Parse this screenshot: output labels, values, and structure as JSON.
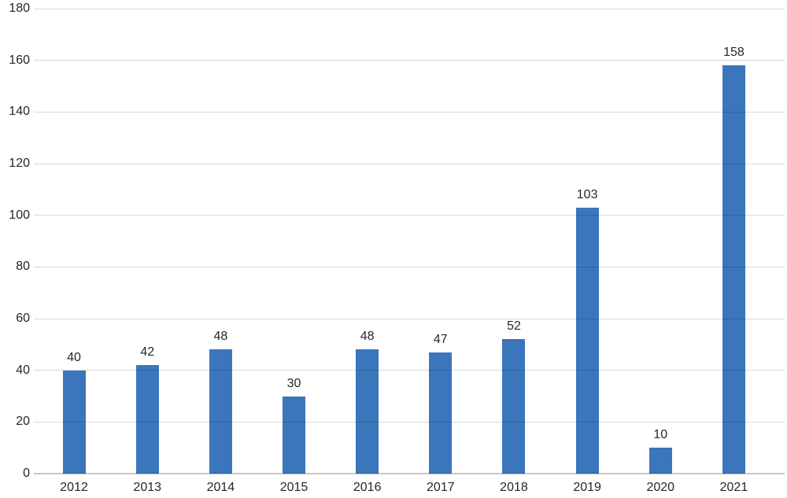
{
  "chart_data": {
    "type": "bar",
    "title": "",
    "xlabel": "",
    "ylabel": "",
    "categories": [
      "2012",
      "2013",
      "2014",
      "2015",
      "2016",
      "2017",
      "2018",
      "2019",
      "2020",
      "2021"
    ],
    "values": [
      40,
      42,
      48,
      30,
      48,
      47,
      52,
      103,
      10,
      158
    ],
    "data_labels": [
      40,
      42,
      48,
      30,
      48,
      47,
      52,
      103,
      10,
      158
    ],
    "ylim": [
      0,
      180
    ],
    "yticks": [
      0,
      20,
      40,
      60,
      80,
      100,
      120,
      140,
      160,
      180
    ],
    "grid": "horizontal",
    "gridlines_over_bars": true,
    "legend": "none",
    "colors": {
      "bar": "#3B76BC",
      "gridline": "rgba(0,0,0,0.15)",
      "axis_line": "rgba(0,0,0,0.22)",
      "text": "#262626",
      "background": "#FFFFFF"
    }
  }
}
